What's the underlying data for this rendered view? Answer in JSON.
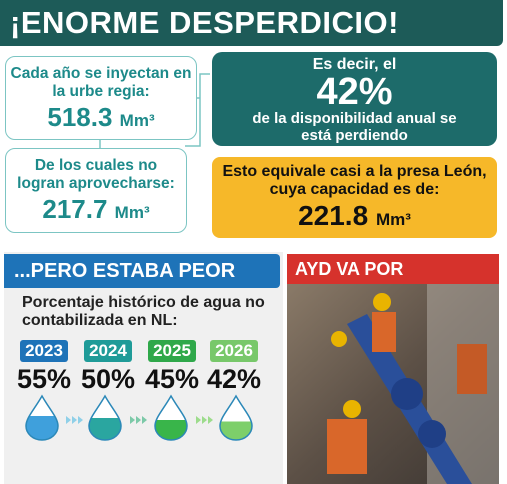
{
  "header": {
    "title": "¡ENORME DESPERDICIO!"
  },
  "injected": {
    "label": "Cada año se inyectan en la urbe regia:",
    "amount": "518.3",
    "unit": "Mm³"
  },
  "wasted": {
    "label": "De los cuales no logran aprovecharse:",
    "amount": "217.7",
    "unit": "Mm³"
  },
  "share": {
    "intro": "Es decir, el",
    "percent": "42%",
    "outro": "de la disponibilidad anual se está perdiendo"
  },
  "comparison": {
    "text": "Esto equivale casi a la presa León, cuya capacidad es de:",
    "amount": "221.8",
    "unit": "Mm³"
  },
  "history": {
    "banner": "...PERO ESTABA PEOR",
    "subtitle": "Porcentaje histórico de agua no contabilizada en NL:",
    "years": [
      {
        "year": "2023",
        "percent": "55%"
      },
      {
        "year": "2024",
        "percent": "50%"
      },
      {
        "year": "2025",
        "percent": "45%"
      },
      {
        "year": "2026",
        "percent": "42%"
      }
    ]
  },
  "solution": {
    "banner": "AYD VA POR SOLUCIÓN"
  }
}
